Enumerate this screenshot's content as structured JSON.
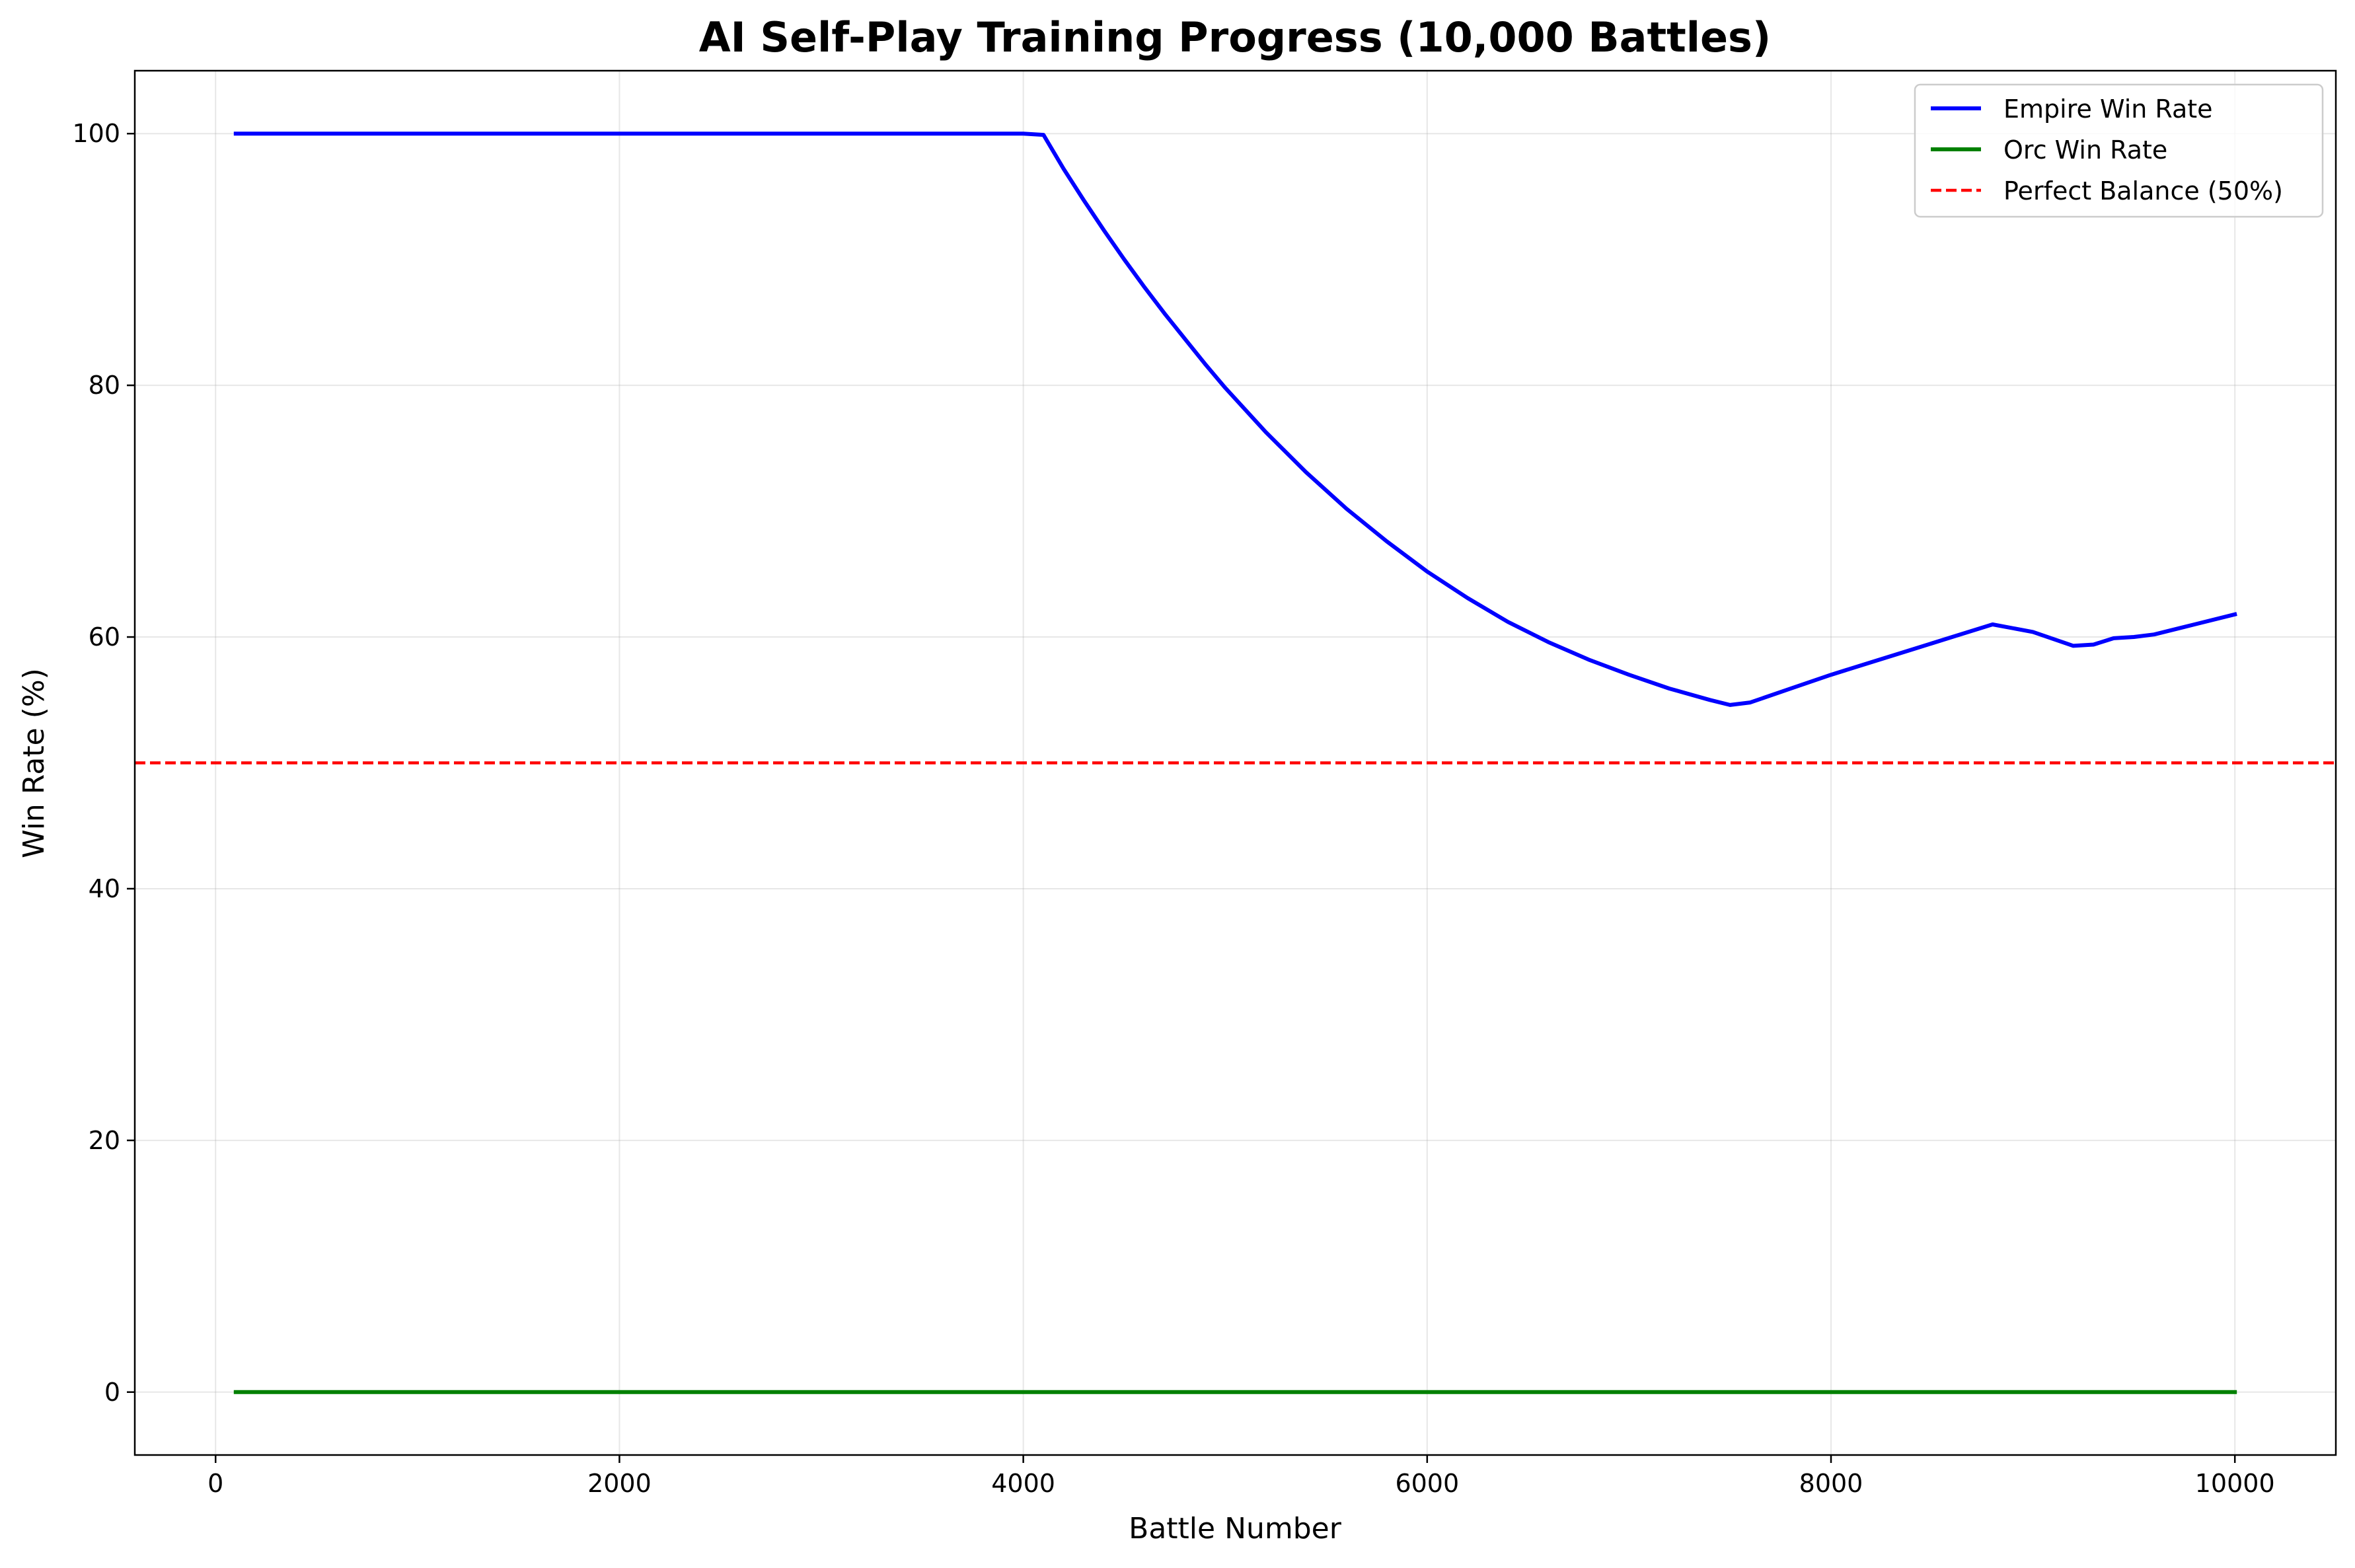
{
  "chart_data": {
    "type": "line",
    "title": "AI Self-Play Training Progress (10,000 Battles)",
    "xlabel": "Battle Number",
    "ylabel": "Win Rate (%)",
    "xlim": [
      -400,
      10500
    ],
    "ylim": [
      -5,
      105
    ],
    "xticks": [
      0,
      2000,
      4000,
      6000,
      8000,
      10000
    ],
    "yticks": [
      0,
      20,
      40,
      60,
      80,
      100
    ],
    "grid": true,
    "legend_position": "top-right",
    "series": [
      {
        "name": "Empire Win Rate",
        "color": "#0000ff",
        "style": "solid",
        "points": [
          [
            100,
            100
          ],
          [
            1000,
            100
          ],
          [
            2000,
            100
          ],
          [
            3000,
            100
          ],
          [
            3900,
            100
          ],
          [
            4000,
            100
          ],
          [
            4100,
            99.9
          ],
          [
            4200,
            97.2
          ],
          [
            4300,
            94.7
          ],
          [
            4400,
            92.3
          ],
          [
            4500,
            90.0
          ],
          [
            4600,
            87.8
          ],
          [
            4700,
            85.7
          ],
          [
            4800,
            83.7
          ],
          [
            4900,
            81.7
          ],
          [
            5000,
            79.8
          ],
          [
            5200,
            76.3
          ],
          [
            5400,
            73.1
          ],
          [
            5600,
            70.2
          ],
          [
            5800,
            67.6
          ],
          [
            6000,
            65.2
          ],
          [
            6200,
            63.1
          ],
          [
            6400,
            61.2
          ],
          [
            6600,
            59.6
          ],
          [
            6800,
            58.2
          ],
          [
            7000,
            57.0
          ],
          [
            7200,
            55.9
          ],
          [
            7400,
            55.0
          ],
          [
            7500,
            54.6
          ],
          [
            7600,
            54.8
          ],
          [
            7800,
            55.9
          ],
          [
            8000,
            57.0
          ],
          [
            8200,
            58.0
          ],
          [
            8400,
            59.0
          ],
          [
            8600,
            60.0
          ],
          [
            8800,
            61.0
          ],
          [
            9000,
            60.4
          ],
          [
            9200,
            59.3
          ],
          [
            9300,
            59.4
          ],
          [
            9400,
            59.9
          ],
          [
            9500,
            60.0
          ],
          [
            9600,
            60.2
          ],
          [
            9800,
            61.0
          ],
          [
            10000,
            61.8
          ]
        ]
      },
      {
        "name": "Orc Win Rate",
        "color": "#008000",
        "style": "solid",
        "points": [
          [
            100,
            0
          ],
          [
            10000,
            0
          ]
        ]
      },
      {
        "name": "Perfect Balance (50%)",
        "color": "#ff0000",
        "style": "dashed",
        "hline": 50
      }
    ]
  }
}
